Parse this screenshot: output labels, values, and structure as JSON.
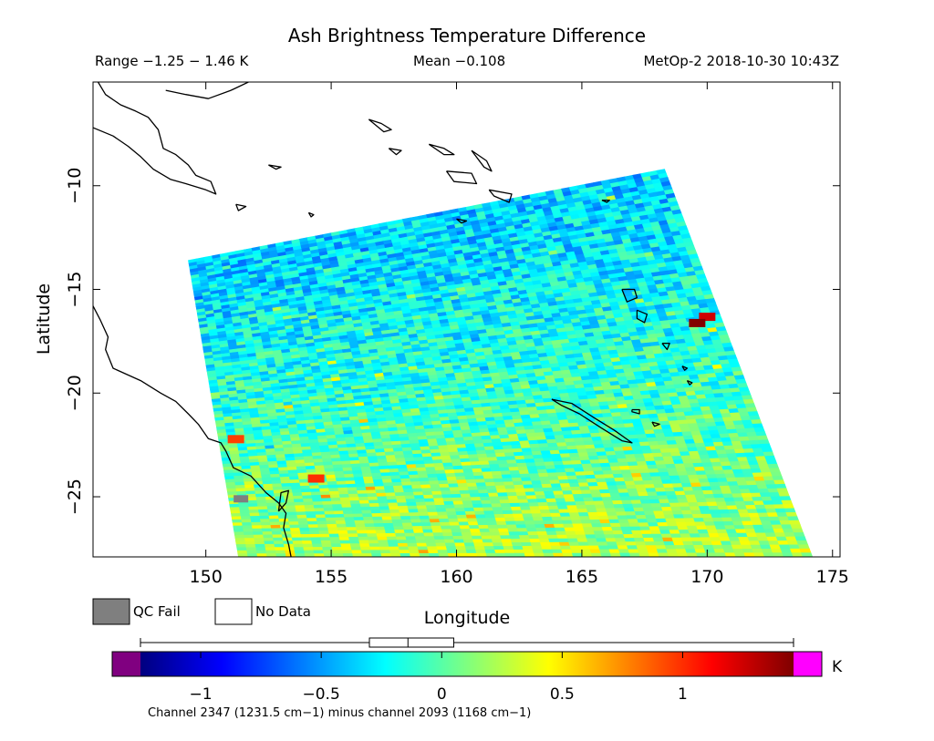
{
  "header": {
    "title": "Ash Brightness Temperature Difference",
    "range": "Range −1.25 − 1.46 K",
    "mean": "Mean −0.108",
    "satellite": "MetOp-2 2018-10-30 10:43Z"
  },
  "legend": {
    "qc_fail_label": "QC Fail",
    "no_data_label": "No Data",
    "qc_fail_color": "#7f7f7f",
    "no_data_color": "#ffffff"
  },
  "colorbar": {
    "unit": "K",
    "caption": "Channel 2347 (1231.5 cm−1) minus channel 2093 (1168 cm−1)",
    "under_color": "#800080",
    "over_color": "#ff00ff",
    "stops": [
      "#00007f",
      "#0000ff",
      "#007fff",
      "#00ffff",
      "#7fff7f",
      "#ffff00",
      "#ff7f00",
      "#ff0000",
      "#7f0000"
    ],
    "ticks": [
      {
        "label": "−1",
        "value": -1
      },
      {
        "label": "−0.5",
        "value": -0.5
      },
      {
        "label": "0",
        "value": 0
      },
      {
        "label": "0.5",
        "value": 0.5
      },
      {
        "label": "1",
        "value": 1
      }
    ],
    "boxplot": {
      "min": -1.25,
      "q1": -0.3,
      "median": -0.14,
      "q3": 0.05,
      "max": 1.46
    }
  },
  "chart_data": {
    "type": "heatmap",
    "title": "Ash Brightness Temperature Difference",
    "xlabel": "Longitude",
    "ylabel": "Latitude",
    "xlim": [
      145.5,
      175.3
    ],
    "ylim": [
      -27.9,
      -5.0
    ],
    "xticks": [
      {
        "label": "150",
        "value": 150
      },
      {
        "label": "155",
        "value": 155
      },
      {
        "label": "160",
        "value": 160
      },
      {
        "label": "165",
        "value": 165
      },
      {
        "label": "170",
        "value": 170
      },
      {
        "label": "175",
        "value": 175
      }
    ],
    "yticks": [
      {
        "label": "−10",
        "value": -10
      },
      {
        "label": "−15",
        "value": -15
      },
      {
        "label": "−20",
        "value": -20
      },
      {
        "label": "−25",
        "value": -25
      }
    ],
    "value_range": [
      -1.25,
      1.46
    ],
    "mean": -0.108,
    "swath_corners": [
      [
        149.3,
        -13.6
      ],
      [
        168.3,
        -9.2
      ],
      [
        174.2,
        -27.9
      ],
      [
        151.3,
        -27.9
      ]
    ],
    "swath_pattern": {
      "north_mean": -0.35,
      "south_mean": 0.25
    },
    "highlights": [
      {
        "lon": 170.0,
        "lat": -16.3,
        "value": 1.25
      },
      {
        "lon": 154.4,
        "lat": -24.1,
        "value": 1.0
      },
      {
        "lon": 151.2,
        "lat": -22.2,
        "value": 0.95
      },
      {
        "lon": 169.6,
        "lat": -16.6,
        "value": 1.45
      }
    ],
    "qc_fail": [
      {
        "lon": 151.4,
        "lat": -25.1
      }
    ],
    "coastlines": [
      {
        "name": "australia",
        "points": [
          [
            145.5,
            -15.8
          ],
          [
            145.8,
            -16.5
          ],
          [
            146.1,
            -17.3
          ],
          [
            146.0,
            -17.9
          ],
          [
            146.3,
            -18.8
          ],
          [
            147.4,
            -19.4
          ],
          [
            148.2,
            -20.0
          ],
          [
            148.8,
            -20.4
          ],
          [
            149.3,
            -21.0
          ],
          [
            149.7,
            -21.5
          ],
          [
            150.1,
            -22.2
          ],
          [
            150.6,
            -22.4
          ],
          [
            150.8,
            -22.8
          ],
          [
            151.1,
            -23.6
          ],
          [
            151.8,
            -24.0
          ],
          [
            152.4,
            -24.8
          ],
          [
            152.9,
            -25.3
          ],
          [
            153.2,
            -25.8
          ],
          [
            153.1,
            -26.5
          ],
          [
            153.3,
            -27.3
          ],
          [
            153.4,
            -27.9
          ]
        ]
      },
      {
        "name": "fraser-island",
        "points": [
          [
            152.9,
            -25.7
          ],
          [
            153.2,
            -25.3
          ],
          [
            153.3,
            -24.7
          ],
          [
            153.0,
            -24.8
          ],
          [
            152.9,
            -25.7
          ]
        ]
      },
      {
        "name": "new-guinea",
        "points": [
          [
            145.5,
            -7.2
          ],
          [
            146.3,
            -7.6
          ],
          [
            146.9,
            -8.1
          ],
          [
            147.4,
            -8.6
          ],
          [
            147.9,
            -9.2
          ],
          [
            148.6,
            -9.7
          ],
          [
            149.2,
            -9.9
          ],
          [
            150.0,
            -10.2
          ],
          [
            150.4,
            -10.4
          ],
          [
            150.2,
            -9.8
          ],
          [
            149.6,
            -9.5
          ],
          [
            149.3,
            -9.0
          ],
          [
            148.8,
            -8.5
          ],
          [
            148.3,
            -8.2
          ],
          [
            148.1,
            -7.3
          ],
          [
            147.7,
            -6.7
          ],
          [
            147.2,
            -6.4
          ],
          [
            146.6,
            -6.1
          ],
          [
            146.0,
            -5.6
          ],
          [
            145.7,
            -5.0
          ]
        ]
      },
      {
        "name": "new-britain",
        "points": [
          [
            148.4,
            -5.4
          ],
          [
            149.2,
            -5.6
          ],
          [
            150.1,
            -5.8
          ],
          [
            151.0,
            -5.4
          ],
          [
            151.7,
            -5.0
          ]
        ]
      },
      {
        "name": "new-caledonia",
        "points": [
          [
            163.8,
            -20.3
          ],
          [
            164.6,
            -20.5
          ],
          [
            165.5,
            -21.2
          ],
          [
            166.3,
            -21.8
          ],
          [
            167.0,
            -22.4
          ],
          [
            166.6,
            -22.3
          ],
          [
            165.8,
            -21.7
          ],
          [
            164.9,
            -21.0
          ],
          [
            164.2,
            -20.6
          ],
          [
            163.8,
            -20.3
          ]
        ]
      },
      {
        "name": "espiritu-santo",
        "points": [
          [
            166.6,
            -15.0
          ],
          [
            167.1,
            -15.0
          ],
          [
            167.2,
            -15.4
          ],
          [
            166.8,
            -15.6
          ],
          [
            166.6,
            -15.0
          ]
        ]
      },
      {
        "name": "malakula",
        "points": [
          [
            167.2,
            -16.0
          ],
          [
            167.6,
            -16.2
          ],
          [
            167.5,
            -16.6
          ],
          [
            167.2,
            -16.4
          ],
          [
            167.2,
            -16.0
          ]
        ]
      },
      {
        "name": "efate",
        "points": [
          [
            168.2,
            -17.6
          ],
          [
            168.5,
            -17.6
          ],
          [
            168.4,
            -17.9
          ],
          [
            168.2,
            -17.6
          ]
        ]
      },
      {
        "name": "erromango",
        "points": [
          [
            169.0,
            -18.7
          ],
          [
            169.2,
            -18.8
          ],
          [
            169.1,
            -18.9
          ],
          [
            169.0,
            -18.7
          ]
        ]
      },
      {
        "name": "tanna",
        "points": [
          [
            169.2,
            -19.4
          ],
          [
            169.4,
            -19.5
          ],
          [
            169.3,
            -19.6
          ],
          [
            169.2,
            -19.4
          ]
        ]
      },
      {
        "name": "lifou",
        "points": [
          [
            167.0,
            -20.8
          ],
          [
            167.3,
            -20.8
          ],
          [
            167.3,
            -21.0
          ],
          [
            167.0,
            -20.9
          ],
          [
            167.0,
            -20.8
          ]
        ]
      },
      {
        "name": "mare",
        "points": [
          [
            167.8,
            -21.4
          ],
          [
            168.1,
            -21.5
          ],
          [
            167.9,
            -21.6
          ],
          [
            167.8,
            -21.4
          ]
        ]
      },
      {
        "name": "guadalcanal",
        "points": [
          [
            159.6,
            -9.3
          ],
          [
            160.6,
            -9.4
          ],
          [
            160.8,
            -9.9
          ],
          [
            159.9,
            -9.8
          ],
          [
            159.6,
            -9.3
          ]
        ]
      },
      {
        "name": "malaita",
        "points": [
          [
            160.6,
            -8.3
          ],
          [
            161.2,
            -8.8
          ],
          [
            161.4,
            -9.3
          ],
          [
            161.1,
            -9.1
          ],
          [
            160.6,
            -8.3
          ]
        ]
      },
      {
        "name": "makira",
        "points": [
          [
            161.3,
            -10.2
          ],
          [
            162.2,
            -10.4
          ],
          [
            162.1,
            -10.8
          ],
          [
            161.5,
            -10.5
          ],
          [
            161.3,
            -10.2
          ]
        ]
      },
      {
        "name": "santa-isabel",
        "points": [
          [
            158.9,
            -8.0
          ],
          [
            159.5,
            -8.2
          ],
          [
            159.9,
            -8.5
          ],
          [
            159.5,
            -8.5
          ],
          [
            158.9,
            -8.0
          ]
        ]
      },
      {
        "name": "choiseul",
        "points": [
          [
            156.5,
            -6.8
          ],
          [
            157.0,
            -7.0
          ],
          [
            157.4,
            -7.3
          ],
          [
            157.1,
            -7.4
          ],
          [
            156.5,
            -6.8
          ]
        ]
      },
      {
        "name": "new-georgia",
        "points": [
          [
            157.3,
            -8.2
          ],
          [
            157.8,
            -8.3
          ],
          [
            157.6,
            -8.5
          ],
          [
            157.3,
            -8.2
          ]
        ]
      },
      {
        "name": "rennell",
        "points": [
          [
            160.0,
            -11.6
          ],
          [
            160.4,
            -11.7
          ],
          [
            160.2,
            -11.8
          ],
          [
            160.0,
            -11.6
          ]
        ]
      },
      {
        "name": "louisiade",
        "points": [
          [
            151.2,
            -10.9
          ],
          [
            151.6,
            -11.0
          ],
          [
            151.3,
            -11.2
          ],
          [
            151.2,
            -10.9
          ]
        ]
      },
      {
        "name": "rossel",
        "points": [
          [
            154.1,
            -11.3
          ],
          [
            154.3,
            -11.4
          ],
          [
            154.2,
            -11.5
          ],
          [
            154.1,
            -11.3
          ]
        ]
      },
      {
        "name": "woodlark",
        "points": [
          [
            152.5,
            -9.0
          ],
          [
            153.0,
            -9.1
          ],
          [
            152.8,
            -9.2
          ],
          [
            152.5,
            -9.0
          ]
        ]
      },
      {
        "name": "santa-cruz",
        "points": [
          [
            165.8,
            -10.7
          ],
          [
            166.1,
            -10.7
          ],
          [
            166.0,
            -10.8
          ],
          [
            165.8,
            -10.7
          ]
        ]
      }
    ]
  }
}
